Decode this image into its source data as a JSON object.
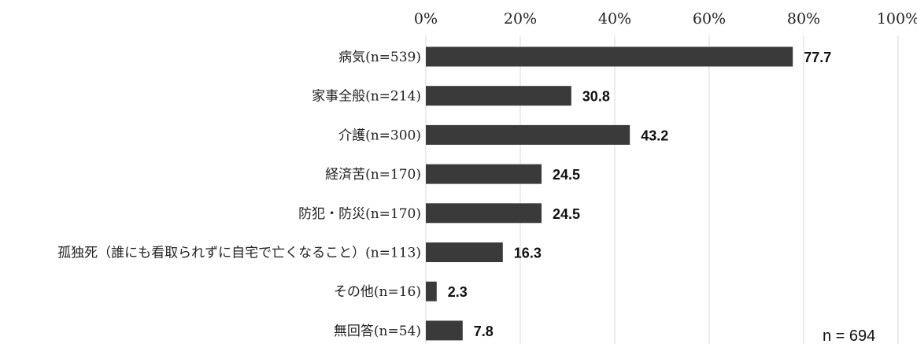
{
  "chart_data": {
    "type": "bar",
    "orientation": "horizontal",
    "categories": [
      "病気(n=539)",
      "家事全般(n=214)",
      "介護(n=300)",
      "経済苦(n=170)",
      "防犯・防災(n=170)",
      "孤独死（誰にも看取られずに自宅で亡くなること）(n=113)",
      "その他(n=16)",
      "無回答(n=54)"
    ],
    "values": [
      77.7,
      30.8,
      43.2,
      24.5,
      24.5,
      16.3,
      2.3,
      7.8
    ],
    "value_labels": [
      "77.7",
      "30.8",
      "43.2",
      "24.5",
      "24.5",
      "16.3",
      "2.3",
      "7.8"
    ],
    "xlim": [
      0,
      100
    ],
    "x_ticks": [
      "0%",
      "20%",
      "40%",
      "60%",
      "80%",
      "100%"
    ],
    "grid": true,
    "bar_color": "#3a3a3a",
    "note": "n = 694"
  }
}
